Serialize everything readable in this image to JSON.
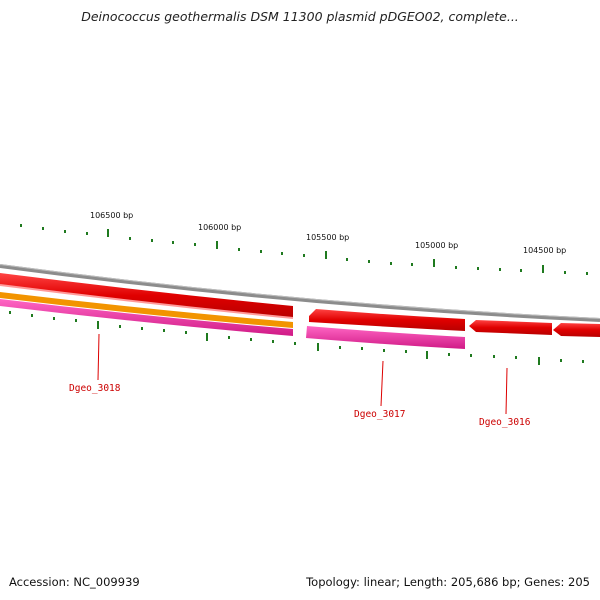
{
  "title": "Deinococcus geothermalis DSM 11300 plasmid pDGEO02, complete...",
  "scale_labels": [
    "106500 bp",
    "106000 bp",
    "105500 bp",
    "105000 bp",
    "104500 bp"
  ],
  "gene_labels": [
    "Dgeo_3018",
    "Dgeo_3017",
    "Dgeo_3016"
  ],
  "footer": {
    "accession": "Accession: NC_009939",
    "summary": "Topology: linear; Length: 205,686 bp; Genes: 205"
  },
  "colors": {
    "backbone": "#8c8c8c",
    "forward_cds": "#ee0000",
    "reverse_cds": "#ee0000",
    "orange_track": "#f29400",
    "magenta_track": "#e8289a",
    "tick": "#1f7a1f",
    "label": "#cc0000"
  }
}
